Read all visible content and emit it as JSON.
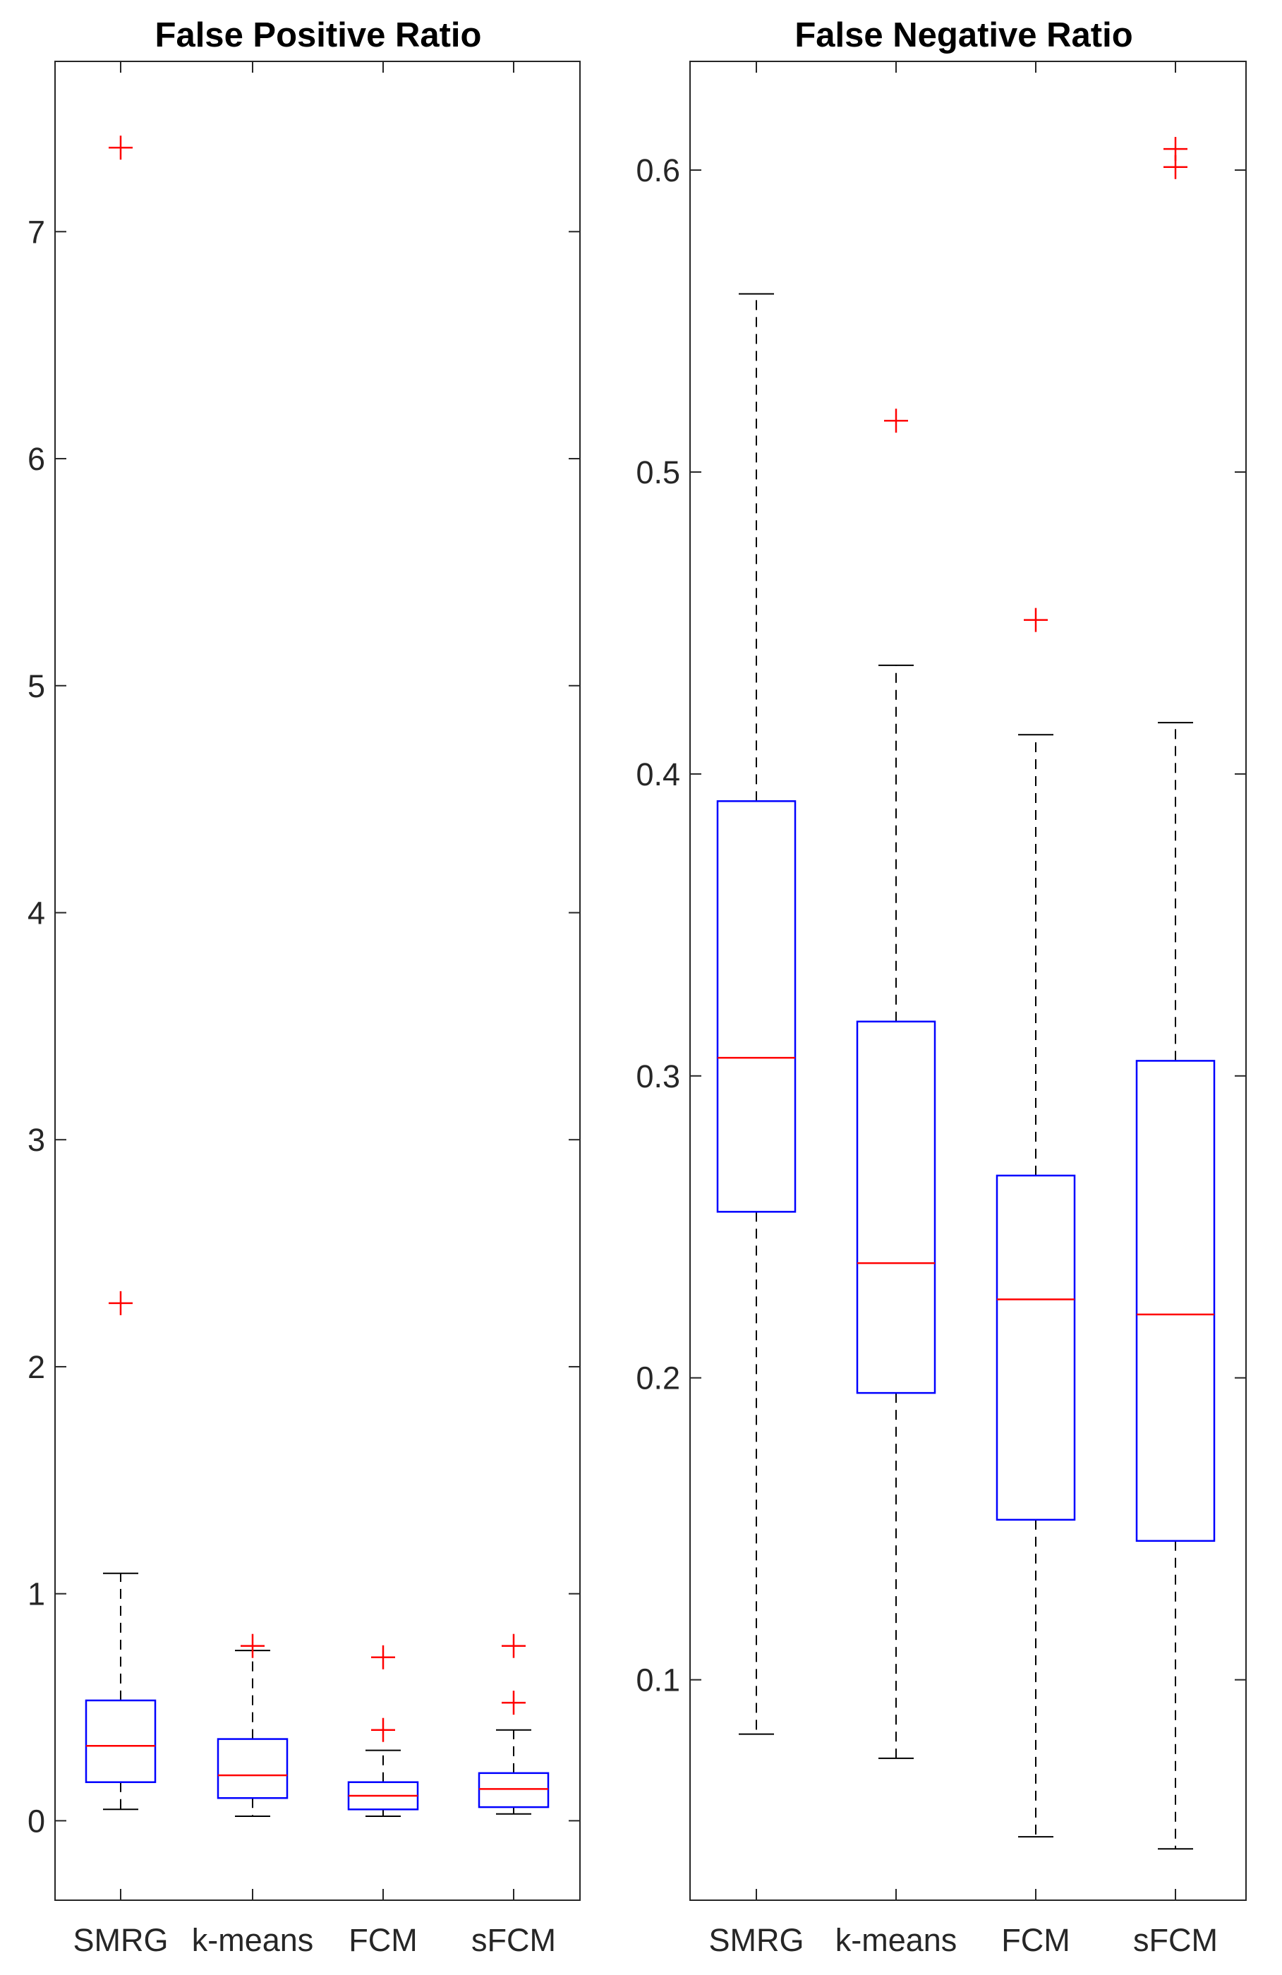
{
  "chart_data": [
    {
      "type": "box",
      "title": "False Positive Ratio",
      "xlabel": "",
      "ylabel": "",
      "categories": [
        "SMRG",
        "k-means",
        "FCM",
        "sFCM"
      ],
      "ylim": [
        -0.35,
        7.75
      ],
      "yticks": [
        0,
        1,
        2,
        3,
        4,
        5,
        6,
        7
      ],
      "ytick_labels": [
        "0",
        "1",
        "2",
        "3",
        "4",
        "5",
        "6",
        "7"
      ],
      "boxes": [
        {
          "name": "SMRG",
          "whisker_low": 0.05,
          "q1": 0.17,
          "median": 0.33,
          "q3": 0.53,
          "whisker_high": 1.09,
          "outliers": [
            2.28,
            7.37
          ]
        },
        {
          "name": "k-means",
          "whisker_low": 0.02,
          "q1": 0.1,
          "median": 0.2,
          "q3": 0.36,
          "whisker_high": 0.75,
          "outliers": [
            0.77
          ]
        },
        {
          "name": "FCM",
          "whisker_low": 0.02,
          "q1": 0.05,
          "median": 0.11,
          "q3": 0.17,
          "whisker_high": 0.31,
          "outliers": [
            0.4,
            0.72
          ]
        },
        {
          "name": "sFCM",
          "whisker_low": 0.03,
          "q1": 0.06,
          "median": 0.14,
          "q3": 0.21,
          "whisker_high": 0.4,
          "outliers": [
            0.52,
            0.77
          ]
        }
      ],
      "grid": false,
      "colors": {
        "box": "#0000ff",
        "median": "#ff0000",
        "outlier": "#ff0000",
        "whisker": "#000000"
      }
    },
    {
      "type": "box",
      "title": "False Negative Ratio",
      "xlabel": "",
      "ylabel": "",
      "categories": [
        "SMRG",
        "k-means",
        "FCM",
        "sFCM"
      ],
      "ylim": [
        0.027,
        0.636
      ],
      "yticks": [
        0.1,
        0.2,
        0.3,
        0.4,
        0.5,
        0.6
      ],
      "ytick_labels": [
        "0.1",
        "0.2",
        "0.3",
        "0.4",
        "0.5",
        "0.6"
      ],
      "boxes": [
        {
          "name": "SMRG",
          "whisker_low": 0.082,
          "q1": 0.255,
          "median": 0.306,
          "q3": 0.391,
          "whisker_high": 0.559,
          "outliers": []
        },
        {
          "name": "k-means",
          "whisker_low": 0.074,
          "q1": 0.195,
          "median": 0.238,
          "q3": 0.318,
          "whisker_high": 0.436,
          "outliers": [
            0.517
          ]
        },
        {
          "name": "FCM",
          "whisker_low": 0.048,
          "q1": 0.153,
          "median": 0.226,
          "q3": 0.267,
          "whisker_high": 0.413,
          "outliers": [
            0.451
          ]
        },
        {
          "name": "sFCM",
          "whisker_low": 0.044,
          "q1": 0.146,
          "median": 0.221,
          "q3": 0.305,
          "whisker_high": 0.417,
          "outliers": [
            0.601,
            0.607
          ]
        }
      ],
      "grid": false,
      "colors": {
        "box": "#0000ff",
        "median": "#ff0000",
        "outlier": "#ff0000",
        "whisker": "#000000"
      }
    }
  ]
}
